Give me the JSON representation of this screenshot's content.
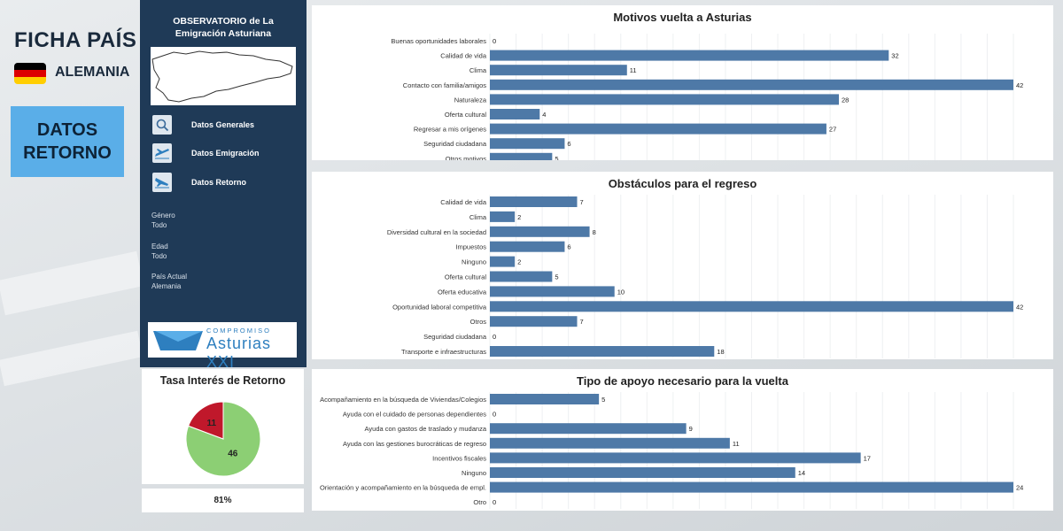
{
  "header": {
    "title": "FICHA PAÍS",
    "country": "ALEMANIA",
    "section_button": [
      "DATOS",
      "RETORNO"
    ]
  },
  "colors": {
    "sidebar": "#1f3a57",
    "bar": "#4e79a7",
    "accent": "#5aaee8",
    "pie_yes": "#8ccf74",
    "pie_no": "#c0182b"
  },
  "sidebar": {
    "title_line1": "OBSERVATORIO de La",
    "title_line2": "Emigración Asturiana",
    "nav": [
      {
        "label": "Datos Generales",
        "icon": "magnifier-chart-icon"
      },
      {
        "label": "Datos Emigración",
        "icon": "plane-takeoff-icon"
      },
      {
        "label": "Datos Retorno",
        "icon": "plane-landing-icon"
      }
    ],
    "filters": [
      {
        "label": "Género",
        "value": "Todo"
      },
      {
        "label": "Edad",
        "value": "Todo"
      },
      {
        "label": "País Actual",
        "value": "Alemania"
      }
    ],
    "logo_top": "COMPROMISO",
    "logo_main": "Asturias XXI"
  },
  "tasa": {
    "title": "Tasa Interés de Retorno",
    "percent_label": "81%"
  },
  "chart_data": [
    {
      "type": "bar",
      "title": "Motivos vuelta a Asturias",
      "categories": [
        "Buenas oportunidades laborales",
        "Calidad de vida",
        "Clima",
        "Contacto con familia/amigos",
        "Naturaleza",
        "Oferta cultural",
        "Regresar a mis orígenes",
        "Seguridad ciudadana",
        "Otros motivos"
      ],
      "values": [
        0,
        32,
        11,
        42,
        28,
        4,
        27,
        6,
        5
      ],
      "xlim": [
        0,
        42
      ]
    },
    {
      "type": "bar",
      "title": "Obstáculos para el regreso",
      "categories": [
        "Calidad de vida",
        "Clima",
        "Diversidad cultural en la sociedad",
        "Impuestos",
        "Ninguno",
        "Oferta cultural",
        "Oferta educativa",
        "Oportunidad laboral competitiva",
        "Otros",
        "Seguridad ciudadana",
        "Transporte e infraestructuras"
      ],
      "values": [
        7,
        2,
        8,
        6,
        2,
        5,
        10,
        42,
        7,
        0,
        18
      ],
      "xlim": [
        0,
        42
      ]
    },
    {
      "type": "bar",
      "title": "Tipo de apoyo necesario para la vuelta",
      "categories": [
        "Acompañamiento en la búsqueda de Viviendas/Colegios",
        "Ayuda con el cuidado de personas dependientes",
        "Ayuda con gastos de traslado y mudanza",
        "Ayuda con las gestiones burocráticas de regreso",
        "Incentivos fiscales",
        "Ninguno",
        "Orientación y acompañamiento en la búsqueda de empl.",
        "Otro"
      ],
      "values": [
        5,
        0,
        9,
        11,
        17,
        14,
        24,
        0
      ],
      "xlim": [
        0,
        24
      ]
    },
    {
      "type": "pie",
      "title": "Tasa Interés de Retorno",
      "values": [
        46,
        11
      ]
    }
  ]
}
